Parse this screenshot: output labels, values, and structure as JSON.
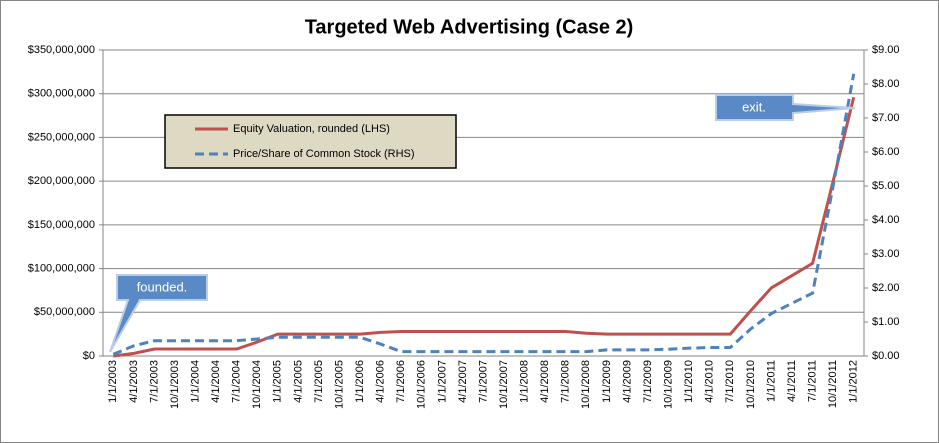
{
  "chart_data": {
    "type": "line",
    "title": "Targeted Web Advertising (Case 2)",
    "categories": [
      "1/1/2003",
      "4/1/2003",
      "7/1/2003",
      "10/1/2003",
      "1/1/2004",
      "4/1/2004",
      "7/1/2004",
      "10/1/2004",
      "1/1/2005",
      "4/1/2005",
      "7/1/2005",
      "10/1/2005",
      "1/1/2006",
      "4/1/2006",
      "7/1/2006",
      "10/1/2006",
      "1/1/2007",
      "4/1/2007",
      "7/1/2007",
      "10/1/2007",
      "1/1/2008",
      "4/1/2008",
      "7/1/2008",
      "10/1/2008",
      "1/1/2009",
      "4/1/2009",
      "7/1/2009",
      "10/1/2009",
      "1/1/2010",
      "4/1/2010",
      "7/1/2010",
      "10/1/2010",
      "1/1/2011",
      "4/1/2011",
      "7/1/2011",
      "10/1/2011",
      "1/1/2012"
    ],
    "series": [
      {
        "name": "Equity Valuation, rounded (LHS)",
        "color": "#c0504d",
        "dashed": false,
        "values": [
          0,
          3000000,
          8000000,
          8000000,
          8000000,
          8000000,
          8000000,
          16000000,
          25000000,
          25000000,
          25000000,
          25000000,
          25000000,
          27000000,
          28000000,
          28000000,
          28000000,
          28000000,
          28000000,
          28000000,
          28000000,
          28000000,
          28000000,
          26000000,
          25000000,
          25000000,
          25000000,
          25000000,
          25000000,
          25000000,
          25000000,
          52000000,
          78000000,
          92000000,
          106000000,
          200000000,
          296000000
        ]
      },
      {
        "name": "Price/Share of Common Stock (RHS)",
        "color": "#4f81bd",
        "dashed": true,
        "axis": "y2",
        "values": [
          0.05,
          0.3,
          0.45,
          0.45,
          0.45,
          0.45,
          0.45,
          0.5,
          0.55,
          0.55,
          0.55,
          0.55,
          0.55,
          0.35,
          0.13,
          0.13,
          0.13,
          0.13,
          0.13,
          0.13,
          0.13,
          0.13,
          0.13,
          0.13,
          0.18,
          0.18,
          0.18,
          0.2,
          0.23,
          0.25,
          0.25,
          0.8,
          1.25,
          1.55,
          1.85,
          5.0,
          8.3
        ]
      }
    ],
    "ylim": [
      0,
      350000000
    ],
    "yticks": [
      {
        "value": 0,
        "label": "$0"
      },
      {
        "value": 50000000,
        "label": "$50,000,000"
      },
      {
        "value": 100000000,
        "label": "$100,000,000"
      },
      {
        "value": 150000000,
        "label": "$150,000,000"
      },
      {
        "value": 200000000,
        "label": "$200,000,000"
      },
      {
        "value": 250000000,
        "label": "$250,000,000"
      },
      {
        "value": 300000000,
        "label": "$300,000,000"
      },
      {
        "value": 350000000,
        "label": "$350,000,000"
      }
    ],
    "y2lim": [
      0,
      9
    ],
    "y2ticks": [
      {
        "value": 0,
        "label": "$0.00"
      },
      {
        "value": 1,
        "label": "$1.00"
      },
      {
        "value": 2,
        "label": "$2.00"
      },
      {
        "value": 3,
        "label": "$3.00"
      },
      {
        "value": 4,
        "label": "$4.00"
      },
      {
        "value": 5,
        "label": "$5.00"
      },
      {
        "value": 6,
        "label": "$6.00"
      },
      {
        "value": 7,
        "label": "$7.00"
      },
      {
        "value": 8,
        "label": "$8.00"
      },
      {
        "value": 9,
        "label": "$9.00"
      }
    ],
    "grid": true,
    "annotations": [
      "founded.",
      "exit."
    ]
  }
}
